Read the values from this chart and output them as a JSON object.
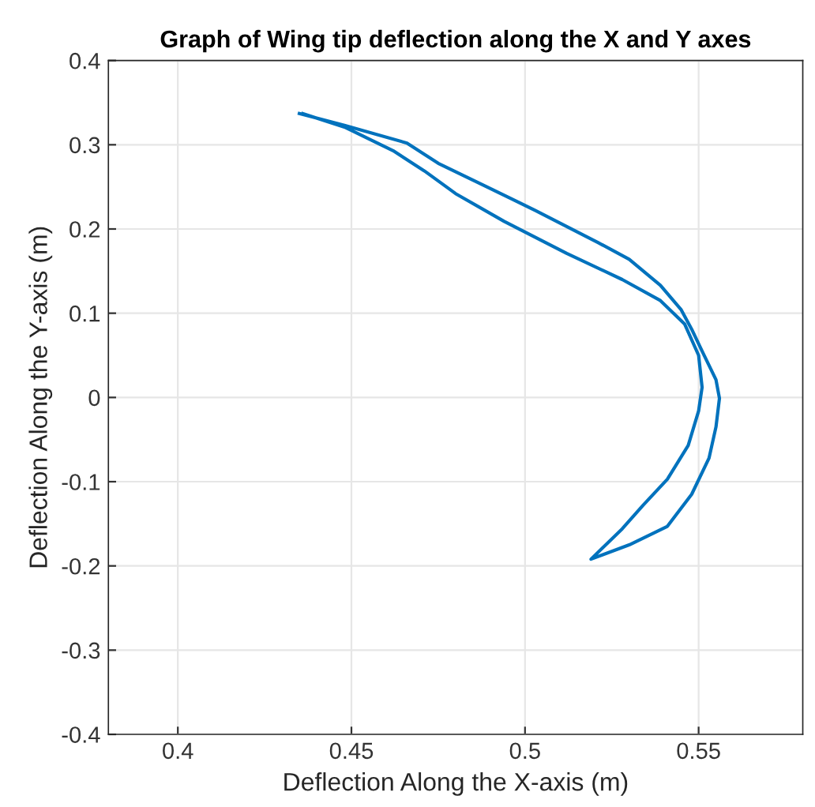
{
  "chart_data": {
    "type": "line",
    "title": "Graph of Wing tip deflection along the X and Y axes",
    "xlabel": "Deflection Along the X-axis (m)",
    "ylabel": "Deflection Along the Y-axis (m)",
    "x": [
      0.435,
      0.448,
      0.466,
      0.475,
      0.489,
      0.503,
      0.521,
      0.53,
      0.539,
      0.545,
      0.548,
      0.551,
      0.555,
      0.556,
      0.555,
      0.553,
      0.548,
      0.541,
      0.53,
      0.519,
      0.528,
      0.534,
      0.541,
      0.547,
      0.55,
      0.551,
      0.55,
      0.546,
      0.539,
      0.528,
      0.512,
      0.494,
      0.48,
      0.471,
      0.462,
      0.448,
      0.436
    ],
    "series": [
      {
        "color": "#0072bd",
        "values": [
          0.337,
          0.323,
          0.302,
          0.278,
          0.25,
          0.222,
          0.184,
          0.164,
          0.133,
          0.104,
          0.081,
          0.055,
          0.021,
          -0.001,
          -0.035,
          -0.072,
          -0.115,
          -0.153,
          -0.175,
          -0.192,
          -0.156,
          -0.128,
          -0.097,
          -0.057,
          -0.016,
          0.012,
          0.05,
          0.087,
          0.115,
          0.14,
          0.171,
          0.209,
          0.242,
          0.269,
          0.293,
          0.321,
          0.337
        ]
      }
    ],
    "xlim": [
      0.38,
      0.58
    ],
    "ylim": [
      -0.4,
      0.4
    ],
    "xticks": [
      0.4,
      0.45,
      0.5,
      0.55
    ],
    "yticks": [
      -0.4,
      -0.3,
      -0.2,
      -0.1,
      0,
      0.1,
      0.2,
      0.3,
      0.4
    ],
    "grid": true,
    "legend": false,
    "marker": "none",
    "line_style": "solid"
  }
}
